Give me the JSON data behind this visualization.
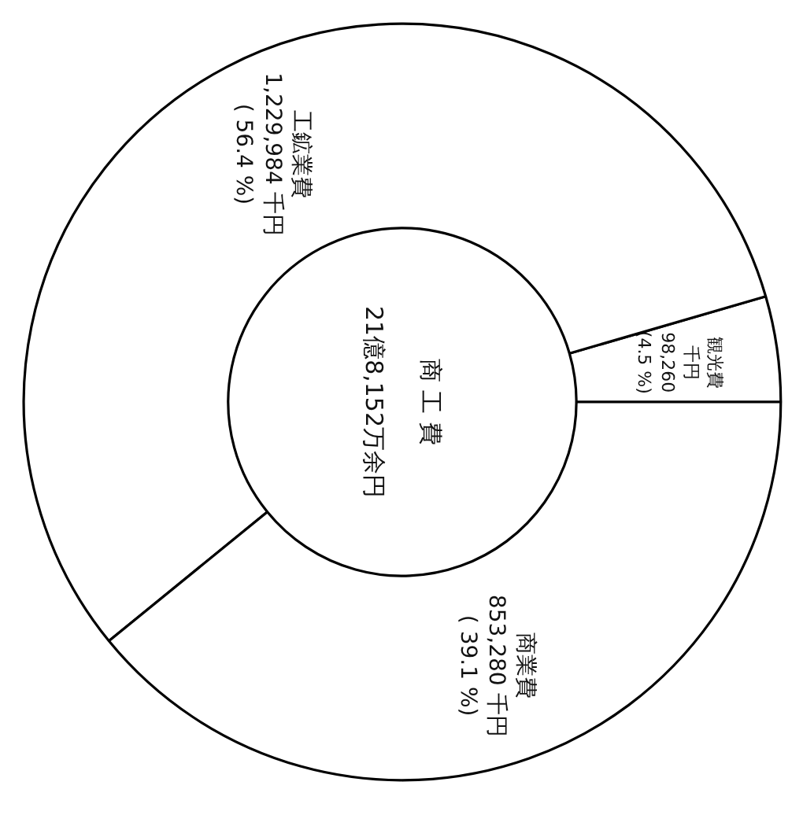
{
  "chart_data": {
    "type": "donut",
    "title": "商 工 費",
    "subtitle": "21億8,152万余円",
    "categories": [
      "観光費",
      "工鉱業費",
      "商業費"
    ],
    "values": [
      98260,
      1229984,
      853280
    ],
    "colors": [
      "#ffffff",
      "#ffffff",
      "#ffffff"
    ],
    "value_labels": [
      "千円\n98,260\n(4.5 %)",
      "1,229,984 千円\n( 56.4 %)",
      "853,280 千円\n( 39.1 %)"
    ]
  }
}
